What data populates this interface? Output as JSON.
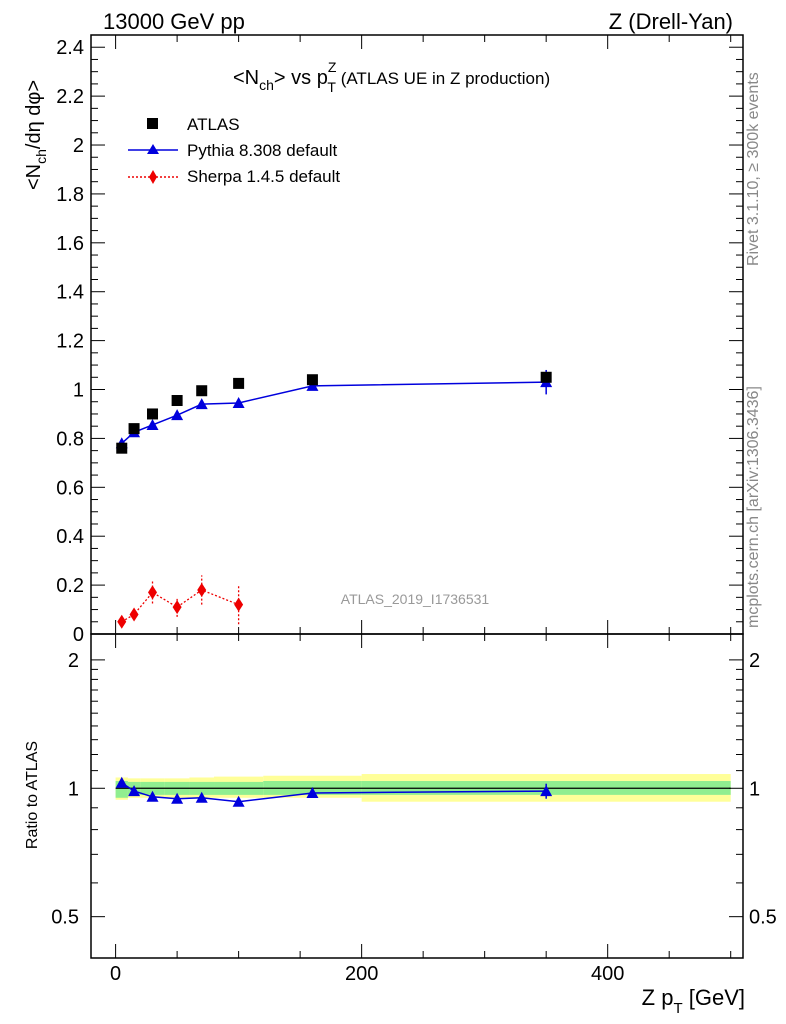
{
  "header": {
    "left": "13000 GeV pp",
    "right": "Z (Drell-Yan)"
  },
  "side_labels": {
    "rivet": "Rivet 3.1.10, ≥ 300k events",
    "mcplots": "mcplots.cern.ch [arXiv:1306.3436]"
  },
  "colors": {
    "atlas": "#000000",
    "pythia": "#0000dd",
    "sherpa": "#ee0000",
    "band_inner": "#90ee90",
    "band_outer": "#ffff99",
    "watermark": "#999999"
  },
  "chart_data": [
    {
      "type": "scatter",
      "title_main": "<N",
      "title_sub": "ch",
      "title_mid": "> vs p",
      "title_sup": "Z",
      "title_sub2": "T",
      "title_rest": " (ATLAS UE in Z production)",
      "ylabel": "<N_ch/dη dφ>",
      "ylabel_main": "<N",
      "ylabel_sub": "ch",
      "ylabel_rest": "/dη dφ>",
      "xlim": [
        -20,
        510
      ],
      "ylim": [
        0,
        2.45
      ],
      "yticks": [
        0,
        0.2,
        0.4,
        0.6,
        0.8,
        1,
        1.2,
        1.4,
        1.6,
        1.8,
        2,
        2.2,
        2.4
      ],
      "ytick_labels": [
        "0",
        "0.2",
        "0.4",
        "0.6",
        "0.8",
        "1",
        "1.2",
        "1.4",
        "1.6",
        "1.8",
        "2",
        "2.2",
        "2.4"
      ],
      "watermark": "ATLAS_2019_I1736531",
      "legend": [
        "ATLAS",
        "Pythia 8.308 default",
        "Sherpa 1.4.5 default"
      ],
      "series": [
        {
          "name": "ATLAS",
          "x": [
            5,
            15,
            30,
            50,
            70,
            100,
            160,
            350
          ],
          "y": [
            0.76,
            0.84,
            0.9,
            0.955,
            0.995,
            1.025,
            1.04,
            1.05
          ]
        },
        {
          "name": "Pythia 8.308 default",
          "x": [
            5,
            15,
            30,
            50,
            70,
            100,
            160,
            350
          ],
          "y": [
            0.78,
            0.825,
            0.855,
            0.895,
            0.94,
            0.945,
            1.015,
            1.03
          ],
          "yerr": [
            0.01,
            0.01,
            0.01,
            0.01,
            0.01,
            0.01,
            0.015,
            0.05
          ]
        },
        {
          "name": "Sherpa 1.4.5 default",
          "x": [
            5,
            15,
            30,
            50,
            70,
            100
          ],
          "y": [
            0.05,
            0.08,
            0.17,
            0.11,
            0.18,
            0.12
          ],
          "yerr": [
            0.015,
            0.02,
            0.045,
            0.04,
            0.06,
            0.08
          ]
        }
      ]
    },
    {
      "type": "line",
      "ylabel": "Ratio to ATLAS",
      "xlabel": "Z p_T [GeV]",
      "xlabel_main": "Z p",
      "xlabel_sub": "T",
      "xlabel_rest": " [GeV]",
      "xlim": [
        -20,
        510
      ],
      "ylim": [
        0.4,
        2.3
      ],
      "yscale": "log",
      "xticks": [
        0,
        200,
        400
      ],
      "xtick_labels": [
        "0",
        "200",
        "400"
      ],
      "yticks": [
        0.5,
        1,
        2
      ],
      "ytick_labels": [
        "0.5",
        "1",
        "2"
      ],
      "bands": {
        "x_edges": [
          0,
          10,
          20,
          40,
          60,
          80,
          120,
          200,
          500
        ],
        "inner_lo": [
          0.95,
          0.965,
          0.965,
          0.965,
          0.965,
          0.965,
          0.965,
          0.965
        ],
        "inner_hi": [
          1.04,
          1.035,
          1.035,
          1.035,
          1.035,
          1.035,
          1.04,
          1.04
        ],
        "outer_lo": [
          0.94,
          0.95,
          0.95,
          0.95,
          0.95,
          0.95,
          0.95,
          0.93
        ],
        "outer_hi": [
          1.06,
          1.055,
          1.055,
          1.055,
          1.06,
          1.065,
          1.07,
          1.08
        ]
      },
      "series": [
        {
          "name": "Pythia 8.308 default",
          "x": [
            5,
            15,
            30,
            50,
            70,
            100,
            160,
            350
          ],
          "y": [
            1.03,
            0.985,
            0.955,
            0.945,
            0.95,
            0.93,
            0.975,
            0.985
          ],
          "yerr": [
            0.01,
            0.01,
            0.01,
            0.01,
            0.01,
            0.01,
            0.015,
            0.04
          ]
        }
      ]
    }
  ]
}
